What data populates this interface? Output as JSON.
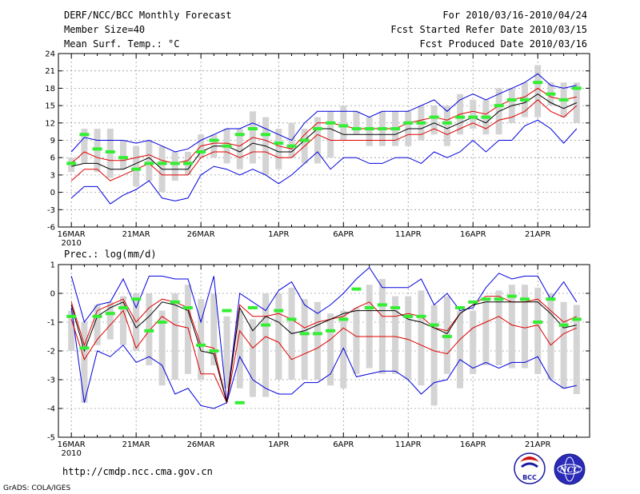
{
  "header": {
    "title": "DERF/NCC/BCC Monthly Forecast",
    "member_size": "Member Size=40",
    "variable1": "Mean Surf. Temp.: °C",
    "for_period": "For 2010/03/16-2010/04/24",
    "started_refer": "Fcst Started Refer Date 2010/03/15",
    "produced": "Fcst Produced Date 2010/03/16"
  },
  "footer": {
    "url": "http://cmdp.ncc.cma.gov.cn",
    "grads": "GrADS: COLA/IGES",
    "logo1_text": "BCC",
    "logo2_text": "NCC"
  },
  "colors": {
    "box": "#d4d4d4",
    "mean": "#000000",
    "spread": "#e00000",
    "extreme": "#0000e0",
    "obs": "#33ee33"
  },
  "chart_data": [
    {
      "type": "box-ensemble",
      "title": "Mean Surf. Temp.: °C",
      "xlabel": "",
      "ylabel": "°C",
      "ylim": [
        -6,
        24
      ],
      "yticks": [
        -6,
        -3,
        0,
        3,
        6,
        9,
        12,
        15,
        18,
        21,
        24
      ],
      "xtick_labels": [
        "16MAR",
        "21MAR",
        "26MAR",
        "1APR",
        "6APR",
        "11APR",
        "16APR",
        "21APR"
      ],
      "xtick_days": [
        1,
        6,
        11,
        17,
        22,
        27,
        32,
        37
      ],
      "year_label": "2010",
      "days": 40,
      "box_low": [
        3.5,
        5,
        3.5,
        2.5,
        4,
        1,
        2,
        0,
        2,
        3,
        6,
        6,
        5,
        4,
        5,
        3,
        4,
        6,
        5,
        5,
        6,
        9,
        10,
        8,
        8,
        8,
        8,
        9,
        10,
        8,
        10,
        11,
        10,
        10,
        12,
        13,
        13,
        15,
        13,
        12
      ],
      "box_high": [
        6,
        11,
        11,
        11,
        9,
        8,
        9,
        8,
        7,
        7,
        10,
        10,
        11,
        11,
        14,
        13,
        11,
        12,
        11,
        13,
        14,
        15,
        14,
        13,
        14,
        14,
        14,
        15,
        15,
        15,
        17,
        16,
        16,
        18,
        18,
        19,
        22,
        19,
        19,
        19
      ],
      "upper": [
        7,
        9.5,
        9,
        9,
        9,
        8.5,
        9,
        8,
        7,
        7.5,
        9,
        10,
        11,
        11,
        12,
        11,
        10,
        9,
        12,
        14,
        14,
        14,
        14,
        13,
        14,
        14,
        14,
        15,
        16,
        14,
        16,
        17,
        16,
        17,
        18,
        19,
        20.5,
        18.5,
        18,
        18.5
      ],
      "p_upper": [
        5,
        7,
        6,
        5.5,
        5.5,
        6,
        6.5,
        5.5,
        5,
        5.5,
        8,
        8.5,
        8.5,
        8,
        9.5,
        9,
        8,
        7.5,
        10,
        12,
        12,
        11.5,
        11,
        11,
        11,
        11,
        12,
        12.5,
        13,
        12.5,
        13.5,
        14,
        13.5,
        15,
        16,
        16.5,
        18,
        16.5,
        16,
        16.5
      ],
      "mean": [
        4.5,
        5,
        5,
        4,
        4,
        5,
        6,
        4,
        4,
        4,
        7,
        8,
        8,
        7,
        8.5,
        8,
        7,
        7,
        9,
        11,
        11,
        10,
        10,
        10,
        10,
        10,
        11,
        11,
        12,
        11,
        12,
        13,
        12,
        14,
        15,
        15.5,
        17,
        15.5,
        14.5,
        15.5
      ],
      "p_lower": [
        2,
        4,
        4,
        2,
        3,
        4,
        5,
        3,
        3,
        3,
        6,
        7,
        7,
        6,
        7,
        7,
        6,
        6,
        8,
        10,
        9,
        9,
        9,
        9,
        9,
        9,
        10,
        10,
        11,
        10,
        11,
        12,
        11,
        12.5,
        13,
        14,
        16,
        14,
        13,
        15
      ],
      "lower": [
        -1,
        1,
        1,
        -2,
        -0.5,
        0.5,
        2,
        -1,
        -1.5,
        -1,
        3,
        4.5,
        4,
        3,
        4,
        3,
        1.5,
        3,
        5,
        7,
        4,
        6,
        6,
        5,
        5,
        6,
        6,
        5,
        7,
        6,
        7,
        9,
        7,
        9,
        9,
        11.5,
        12.5,
        11,
        8.5,
        11
      ],
      "obs": [
        5,
        10,
        7.5,
        7,
        6,
        4,
        5,
        5,
        5,
        5,
        7,
        9,
        8,
        10,
        11,
        10,
        8.5,
        8,
        9,
        11,
        12,
        11.5,
        11,
        11,
        11,
        11,
        12,
        12,
        13,
        12,
        13,
        13,
        13,
        15,
        16,
        16,
        19,
        17,
        16,
        18
      ]
    },
    {
      "type": "box-ensemble",
      "title": "Prec.: log(mm/d)",
      "xlabel": "",
      "ylabel": "log(mm/d)",
      "ylim": [
        -5,
        1
      ],
      "yticks": [
        -5,
        -4,
        -3,
        -2,
        -1,
        0,
        1
      ],
      "xtick_labels": [
        "16MAR",
        "21MAR",
        "26MAR",
        "1APR",
        "6APR",
        "11APR",
        "16APR",
        "21APR"
      ],
      "xtick_days": [
        1,
        6,
        11,
        17,
        22,
        27,
        32,
        37
      ],
      "year_label": "2010",
      "days": 40,
      "box_low": [
        -2,
        -3.8,
        -1.8,
        -1.6,
        -1.8,
        -2,
        -2.5,
        -3.2,
        -3,
        -2.8,
        -3,
        -2.5,
        -3.3,
        -3.3,
        -3.6,
        -3.6,
        -3,
        -3,
        -3,
        -3,
        -3.2,
        -3.3,
        -2.8,
        -2.6,
        -2.8,
        -2.8,
        -3,
        -3.2,
        -3.9,
        -2.8,
        -3.3,
        -2.8,
        -2.5,
        -2.5,
        -2.6,
        -2.6,
        -2.8,
        -3,
        -3.3,
        -3.5
      ],
      "box_high": [
        -0.6,
        -1,
        -0.4,
        -0.3,
        -0.1,
        0,
        0,
        -0.6,
        0,
        0.3,
        -0.2,
        0,
        -0.8,
        -0.6,
        -0.9,
        0,
        0,
        0.2,
        -0.2,
        -0.3,
        -0.7,
        -0.6,
        -0.5,
        0.3,
        0.5,
        -0.1,
        -0.1,
        0.1,
        -0.4,
        -0.1,
        -0.6,
        -0.6,
        -0.2,
        0.1,
        0.3,
        0.3,
        0.2,
        0,
        -0.3,
        -0.4
      ],
      "upper": [
        0.6,
        -1,
        -0.4,
        -0.3,
        0.5,
        -0.5,
        0.6,
        0.6,
        0.5,
        0.5,
        -1,
        0.6,
        -3.8,
        0,
        -0.3,
        -0.6,
        0.1,
        0.4,
        -0.4,
        -0.7,
        -0.4,
        0,
        0.5,
        0.9,
        0.2,
        0.2,
        0.2,
        0.5,
        -0.4,
        0,
        -0.6,
        -0.5,
        0.2,
        0.7,
        0.5,
        0.6,
        0.6,
        -0.2,
        0.4,
        -0.3
      ],
      "p_upper": [
        -0.3,
        -1.8,
        -0.6,
        -0.4,
        -0.2,
        -1,
        -0.5,
        -0.2,
        -0.3,
        -0.5,
        -1.8,
        -1.9,
        -3.8,
        -0.4,
        -0.8,
        -0.8,
        -0.7,
        -0.9,
        -1.2,
        -1,
        -0.9,
        -0.8,
        -0.5,
        -0.3,
        -0.8,
        -0.8,
        -0.7,
        -0.8,
        -1.2,
        -1.3,
        -0.7,
        -0.4,
        -0.1,
        -0.1,
        -0.3,
        -0.3,
        -0.2,
        -0.6,
        -1,
        -0.8
      ],
      "mean": [
        -0.4,
        -2,
        -0.8,
        -0.5,
        -0.3,
        -1.2,
        -0.8,
        -0.3,
        -0.4,
        -0.6,
        -2,
        -2.1,
        -3.8,
        -0.5,
        -1.3,
        -0.8,
        -1,
        -1.4,
        -1.3,
        -1.1,
        -0.9,
        -0.7,
        -0.6,
        -0.6,
        -0.6,
        -0.6,
        -0.9,
        -1,
        -1.2,
        -1.4,
        -0.7,
        -0.4,
        -0.3,
        -0.3,
        -0.3,
        -0.3,
        -0.3,
        -0.7,
        -1.2,
        -1.1
      ],
      "p_lower": [
        -0.9,
        -2.3,
        -1.6,
        -1.1,
        -0.6,
        -1.9,
        -1.3,
        -0.8,
        -1.1,
        -1.2,
        -2.8,
        -2.8,
        -3.8,
        -1.3,
        -1.9,
        -1.5,
        -1.7,
        -2.3,
        -2.1,
        -1.9,
        -1.6,
        -1.2,
        -1.5,
        -1.5,
        -1.5,
        -1.5,
        -1.6,
        -1.8,
        -2,
        -2.1,
        -1.6,
        -1.2,
        -1,
        -0.8,
        -1.1,
        -1.2,
        -1.1,
        -1.8,
        -1.4,
        -1.2
      ],
      "lower": [
        -0.5,
        -3.8,
        -2,
        -2.2,
        -1.8,
        -2.4,
        -2.2,
        -2.5,
        -3.5,
        -3.3,
        -3.9,
        -4,
        -3.8,
        -2.2,
        -3,
        -3.3,
        -3.5,
        -3.5,
        -3.1,
        -3.1,
        -2.8,
        -1.9,
        -2.9,
        -2.8,
        -2.7,
        -2.7,
        -3,
        -3.5,
        -3.1,
        -3,
        -2.3,
        -2.6,
        -2.4,
        -2.6,
        -2.4,
        -2.4,
        -2.2,
        -3,
        -3.3,
        -3.2
      ],
      "obs": [
        -0.8,
        -1.9,
        -0.8,
        -0.7,
        -0.5,
        -0.2,
        -1.3,
        -1,
        -0.3,
        -0.5,
        -1.8,
        -2,
        -0.6,
        -3.8,
        -0.5,
        -1.1,
        -0.6,
        -0.9,
        -1.4,
        -1.4,
        -1.3,
        -0.9,
        0.15,
        -0.5,
        -0.4,
        -0.5,
        -0.8,
        -0.8,
        -1.1,
        -1.5,
        -0.5,
        -0.3,
        -0.2,
        -0.2,
        -0.1,
        -0.2,
        -1,
        -0.2,
        -1.1,
        -0.9
      ]
    }
  ]
}
